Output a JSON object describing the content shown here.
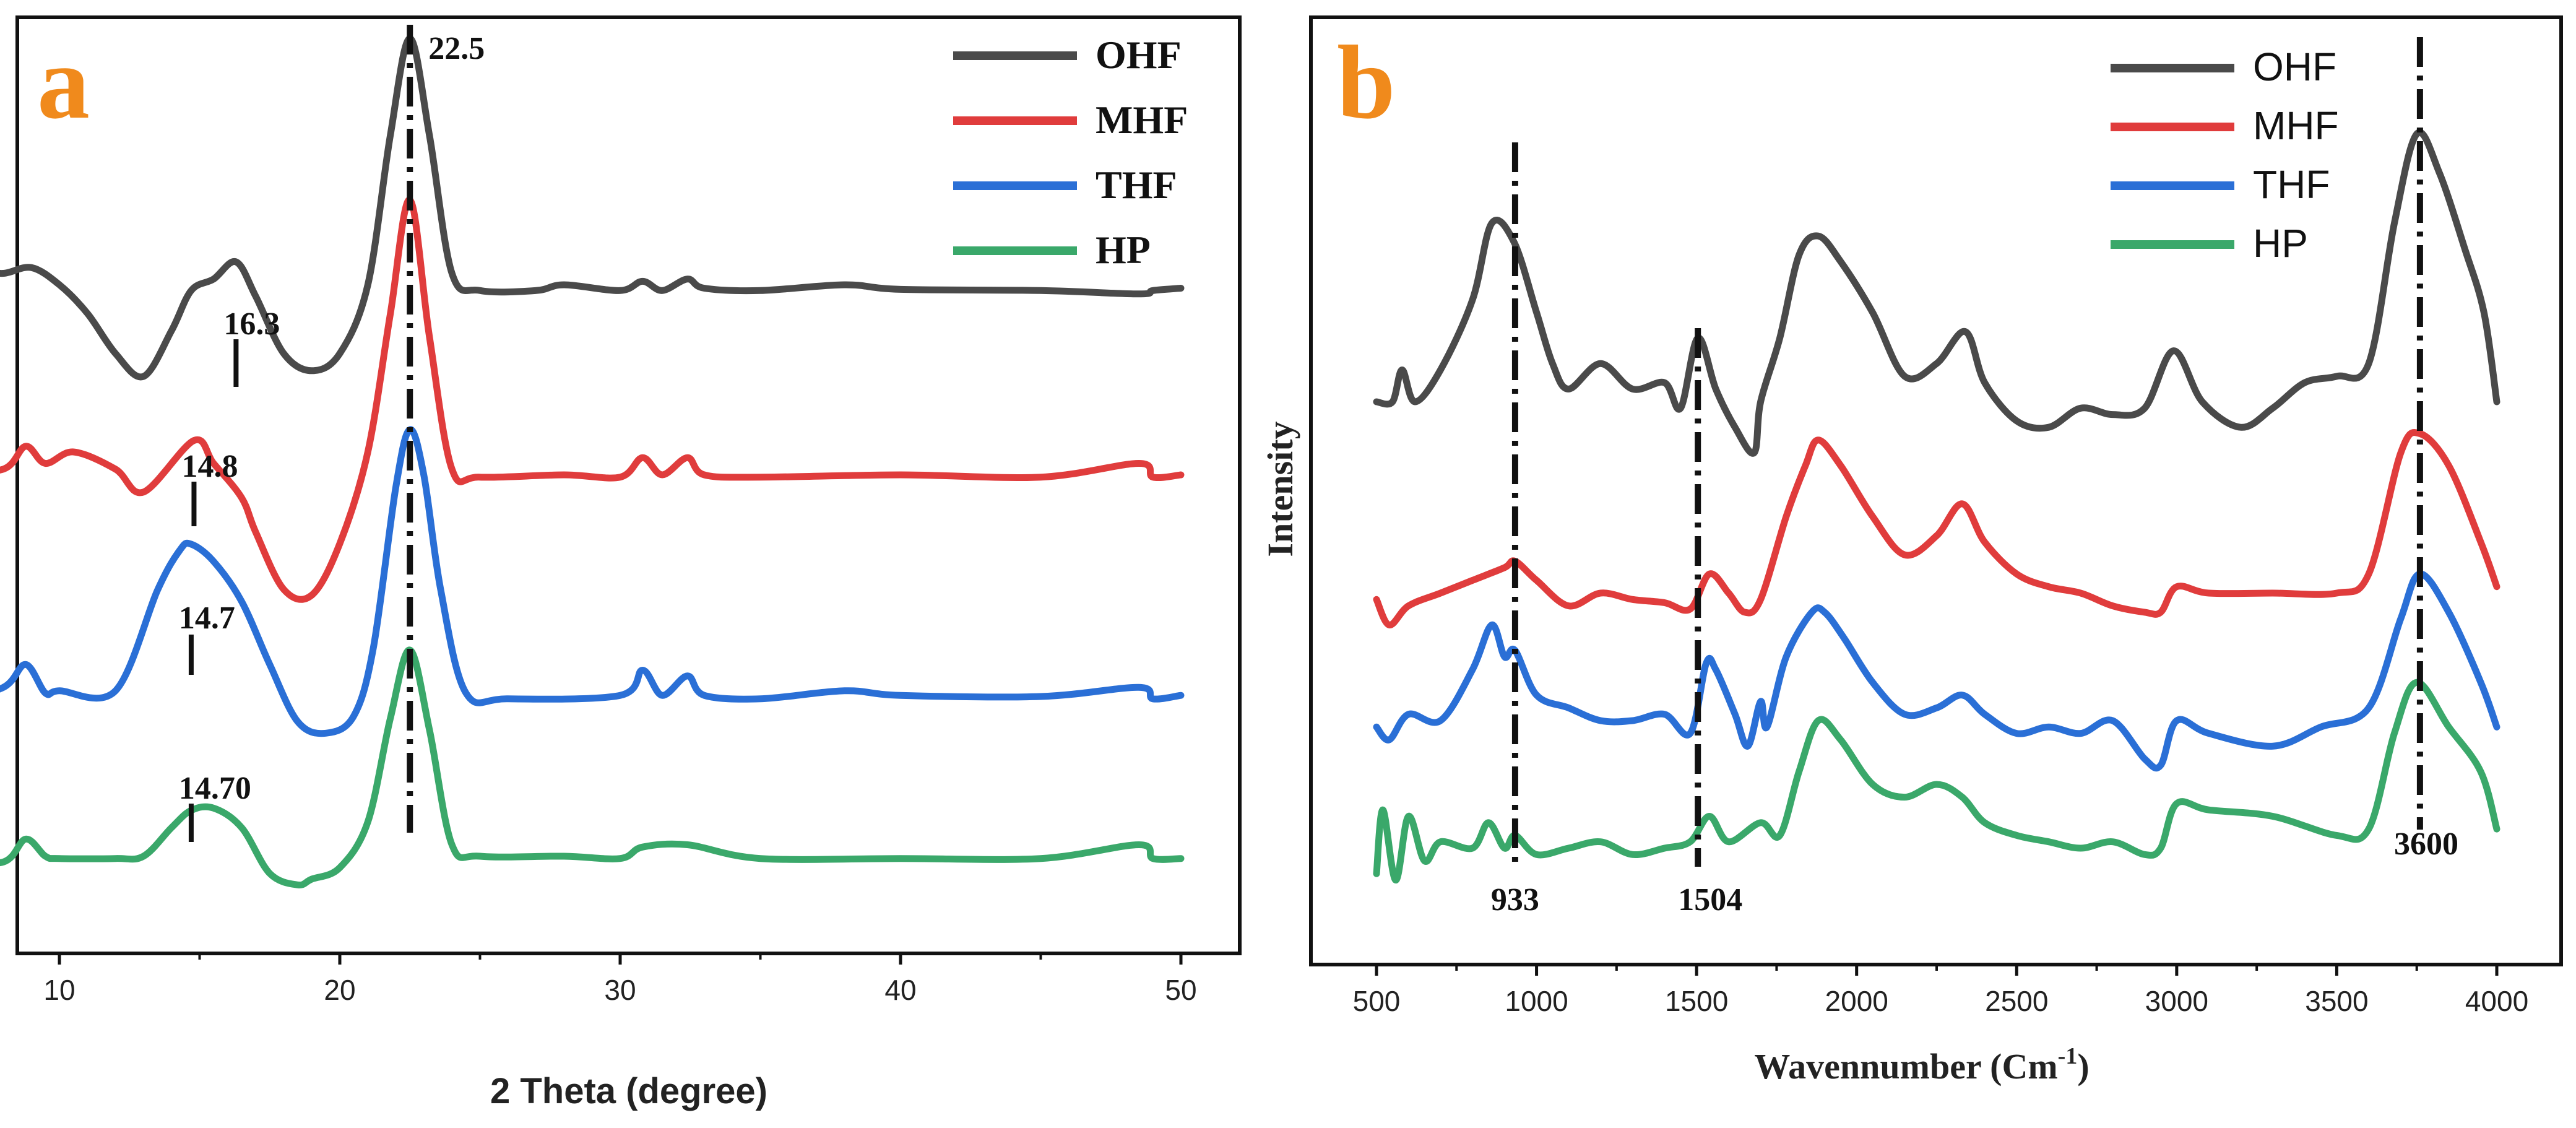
{
  "colors": {
    "OHF": "#4a4a4a",
    "MHF": "#e03c3c",
    "THF": "#2a6fd6",
    "HP": "#3aa86a",
    "panel_letter": "#f08a1c"
  },
  "chart_data": [
    {
      "type": "line",
      "panel_label": "a",
      "xlabel": "2 Theta (degree)",
      "ylabel": "",
      "xlim": [
        5,
        50
      ],
      "xticks": [
        "10",
        "20",
        "30",
        "40",
        "50"
      ],
      "xtick_values": [
        10,
        20,
        30,
        40,
        50
      ],
      "legend": [
        "OHF",
        "MHF",
        "THF",
        "HP"
      ],
      "legend_placement": "top-right",
      "y_scale": "arbitrary intensity, curves vertically offset",
      "series": [
        {
          "name": "OHF",
          "x": [
            5,
            6,
            7,
            8,
            9,
            10,
            11,
            12,
            13,
            14,
            14.7,
            15.5,
            16.3,
            17,
            18,
            19,
            20,
            21,
            21.8,
            22.5,
            23.2,
            24,
            25,
            27,
            28,
            30,
            30.8,
            31.5,
            32.4,
            33,
            35,
            38,
            40,
            45,
            48.5,
            49,
            50
          ],
          "y": [
            4.05,
            4.1,
            4.12,
            4.1,
            4.15,
            4.0,
            3.75,
            3.4,
            3.2,
            3.6,
            3.95,
            4.05,
            4.2,
            3.9,
            3.4,
            3.25,
            3.4,
            4.0,
            5.3,
            6.15,
            5.3,
            4.1,
            3.95,
            3.95,
            4.0,
            3.95,
            4.03,
            3.95,
            4.05,
            3.97,
            3.95,
            4.0,
            3.96,
            3.95,
            3.92,
            3.95,
            3.97
          ]
        },
        {
          "name": "MHF",
          "x": [
            5,
            6,
            8,
            8.8,
            9.5,
            10.5,
            12,
            13,
            14.8,
            15.5,
            16.5,
            17,
            18,
            19,
            20,
            21,
            21.8,
            22.5,
            23.2,
            24,
            25,
            28,
            30,
            30.8,
            31.5,
            32.4,
            33,
            35,
            40,
            45,
            48.5,
            49,
            50
          ],
          "y": [
            2.8,
            2.82,
            2.85,
            3.05,
            2.9,
            3.0,
            2.85,
            2.65,
            3.1,
            2.9,
            2.6,
            2.3,
            1.8,
            1.75,
            2.2,
            3.0,
            4.2,
            5.2,
            4.0,
            2.85,
            2.78,
            2.8,
            2.78,
            2.95,
            2.8,
            2.95,
            2.8,
            2.78,
            2.8,
            2.78,
            2.9,
            2.78,
            2.8
          ]
        },
        {
          "name": "THF",
          "x": [
            5,
            6,
            8,
            8.8,
            9.5,
            10,
            12,
            13.5,
            14.3,
            14.7,
            15.5,
            16.5,
            17.5,
            18.5,
            19.5,
            20.5,
            21.2,
            22,
            22.5,
            23,
            23.6,
            24.5,
            26,
            30,
            30.8,
            31.5,
            32.4,
            33,
            35,
            38,
            40,
            45,
            48.5,
            49,
            50
          ],
          "y": [
            1.3,
            1.22,
            1.35,
            1.55,
            1.3,
            1.32,
            1.32,
            2.2,
            2.55,
            2.6,
            2.45,
            2.1,
            1.55,
            1.05,
            0.95,
            1.1,
            1.7,
            3.1,
            3.6,
            3.2,
            2.2,
            1.3,
            1.25,
            1.28,
            1.5,
            1.28,
            1.45,
            1.28,
            1.25,
            1.32,
            1.28,
            1.27,
            1.35,
            1.25,
            1.28
          ]
        },
        {
          "name": "HP",
          "x": [
            5,
            6,
            8,
            8.8,
            9.5,
            10,
            12,
            13,
            14,
            14.7,
            15.5,
            16.5,
            17.5,
            18.5,
            19,
            20,
            21,
            21.8,
            22.5,
            23.2,
            24,
            25,
            28,
            30,
            30.8,
            32.4,
            35,
            40,
            45,
            48.5,
            49,
            50
          ],
          "y": [
            0.15,
            0.15,
            0.15,
            0.35,
            0.2,
            0.18,
            0.18,
            0.2,
            0.45,
            0.6,
            0.62,
            0.45,
            0.05,
            -0.05,
            0.0,
            0.1,
            0.5,
            1.4,
            2.0,
            1.3,
            0.3,
            0.2,
            0.2,
            0.18,
            0.28,
            0.3,
            0.18,
            0.18,
            0.18,
            0.3,
            0.18,
            0.18
          ]
        }
      ],
      "annotations": [
        "22.5",
        "16.3",
        "14.8",
        "14.7",
        "14.70"
      ]
    },
    {
      "type": "line",
      "panel_label": "b",
      "xlabel": "Wavennumber (Cm",
      "xlabel_superscript": "-1",
      "xlabel_suffix": ")",
      "ylabel": "Intensity",
      "xlim": [
        400,
        4100
      ],
      "xticks": [
        "500",
        "1000",
        "1500",
        "2000",
        "2500",
        "3000",
        "3500",
        "4000"
      ],
      "xtick_values": [
        500,
        1000,
        1500,
        2000,
        2500,
        3000,
        3500,
        4000
      ],
      "legend": [
        "OHF",
        "MHF",
        "THF",
        "HP"
      ],
      "legend_placement": "top-right",
      "y_scale": "arbitrary intensity, curves vertically offset",
      "series": [
        {
          "name": "OHF",
          "x": [
            500,
            550,
            580,
            620,
            700,
            800,
            860,
            930,
            1000,
            1050,
            1100,
            1200,
            1300,
            1400,
            1450,
            1504,
            1560,
            1620,
            1680,
            1700,
            1760,
            1820,
            1880,
            1950,
            2050,
            2150,
            2250,
            2340,
            2400,
            2500,
            2600,
            2700,
            2800,
            2900,
            2990,
            3080,
            3200,
            3300,
            3400,
            3500,
            3600,
            3680,
            3750,
            3820,
            3900,
            3960,
            4000
          ],
          "y": [
            7.0,
            7.0,
            7.5,
            7.0,
            7.5,
            8.6,
            9.8,
            9.5,
            8.4,
            7.6,
            7.2,
            7.6,
            7.2,
            7.3,
            6.9,
            8.0,
            7.2,
            6.6,
            6.2,
            7.0,
            8.0,
            9.3,
            9.6,
            9.2,
            8.4,
            7.4,
            7.6,
            8.1,
            7.3,
            6.7,
            6.6,
            6.9,
            6.8,
            6.9,
            7.8,
            7.0,
            6.6,
            6.9,
            7.3,
            7.4,
            7.6,
            9.8,
            11.2,
            10.6,
            9.4,
            8.4,
            7.0
          ]
        },
        {
          "name": "MHF",
          "x": [
            500,
            540,
            600,
            700,
            800,
            900,
            933,
            1000,
            1100,
            1200,
            1300,
            1400,
            1480,
            1540,
            1600,
            1650,
            1700,
            1780,
            1840,
            1880,
            1950,
            2050,
            2150,
            2250,
            2330,
            2400,
            2500,
            2600,
            2700,
            2800,
            2900,
            2950,
            3000,
            3100,
            3300,
            3500,
            3600,
            3700,
            3760,
            3850,
            3950,
            4000
          ],
          "y": [
            3.9,
            3.5,
            3.8,
            4.0,
            4.2,
            4.4,
            4.5,
            4.2,
            3.8,
            4.0,
            3.9,
            3.85,
            3.75,
            4.3,
            4.0,
            3.7,
            3.9,
            5.2,
            6.0,
            6.4,
            6.0,
            5.2,
            4.6,
            4.9,
            5.4,
            4.8,
            4.3,
            4.1,
            4.0,
            3.8,
            3.7,
            3.7,
            4.1,
            4.0,
            4.0,
            4.0,
            4.3,
            6.2,
            6.5,
            6.0,
            4.8,
            4.1
          ]
        },
        {
          "name": "THF",
          "x": [
            500,
            540,
            600,
            700,
            800,
            860,
            900,
            933,
            1000,
            1100,
            1200,
            1300,
            1400,
            1480,
            1530,
            1560,
            1620,
            1660,
            1700,
            1720,
            1780,
            1860,
            1900,
            1960,
            2050,
            2150,
            2250,
            2330,
            2400,
            2500,
            2600,
            2700,
            2800,
            2900,
            2950,
            3000,
            3100,
            3300,
            3450,
            3600,
            3700,
            3760,
            3850,
            3950,
            4000
          ],
          "y": [
            1.9,
            1.7,
            2.1,
            2.0,
            2.8,
            3.5,
            3.0,
            3.1,
            2.4,
            2.2,
            2.0,
            2.0,
            2.1,
            1.8,
            2.9,
            2.8,
            2.1,
            1.6,
            2.3,
            1.9,
            3.0,
            3.7,
            3.7,
            3.3,
            2.6,
            2.1,
            2.2,
            2.4,
            2.1,
            1.8,
            1.9,
            1.8,
            2.0,
            1.4,
            1.3,
            2.0,
            1.8,
            1.6,
            1.9,
            2.2,
            3.6,
            4.3,
            3.7,
            2.6,
            1.9
          ]
        },
        {
          "name": "HP",
          "x": [
            500,
            520,
            560,
            600,
            650,
            700,
            800,
            850,
            900,
            933,
            1000,
            1100,
            1200,
            1300,
            1400,
            1480,
            1540,
            1600,
            1700,
            1760,
            1820,
            1880,
            1950,
            2050,
            2150,
            2250,
            2330,
            2400,
            2500,
            2600,
            2700,
            2800,
            2900,
            2950,
            3000,
            3100,
            3300,
            3500,
            3600,
            3680,
            3750,
            3850,
            3950,
            4000
          ],
          "y": [
            -0.4,
            0.6,
            -0.5,
            0.5,
            -0.2,
            0.1,
            0.0,
            0.4,
            0.0,
            0.2,
            -0.1,
            0.0,
            0.1,
            -0.1,
            0.0,
            0.1,
            0.5,
            0.1,
            0.4,
            0.2,
            1.2,
            2.0,
            1.7,
            1.0,
            0.8,
            1.0,
            0.8,
            0.4,
            0.2,
            0.1,
            0.0,
            0.1,
            -0.1,
            0.0,
            0.7,
            0.6,
            0.5,
            0.2,
            0.3,
            1.8,
            2.6,
            1.9,
            1.2,
            0.3
          ]
        }
      ],
      "annotations": [
        "933",
        "1504",
        "3600"
      ]
    }
  ]
}
